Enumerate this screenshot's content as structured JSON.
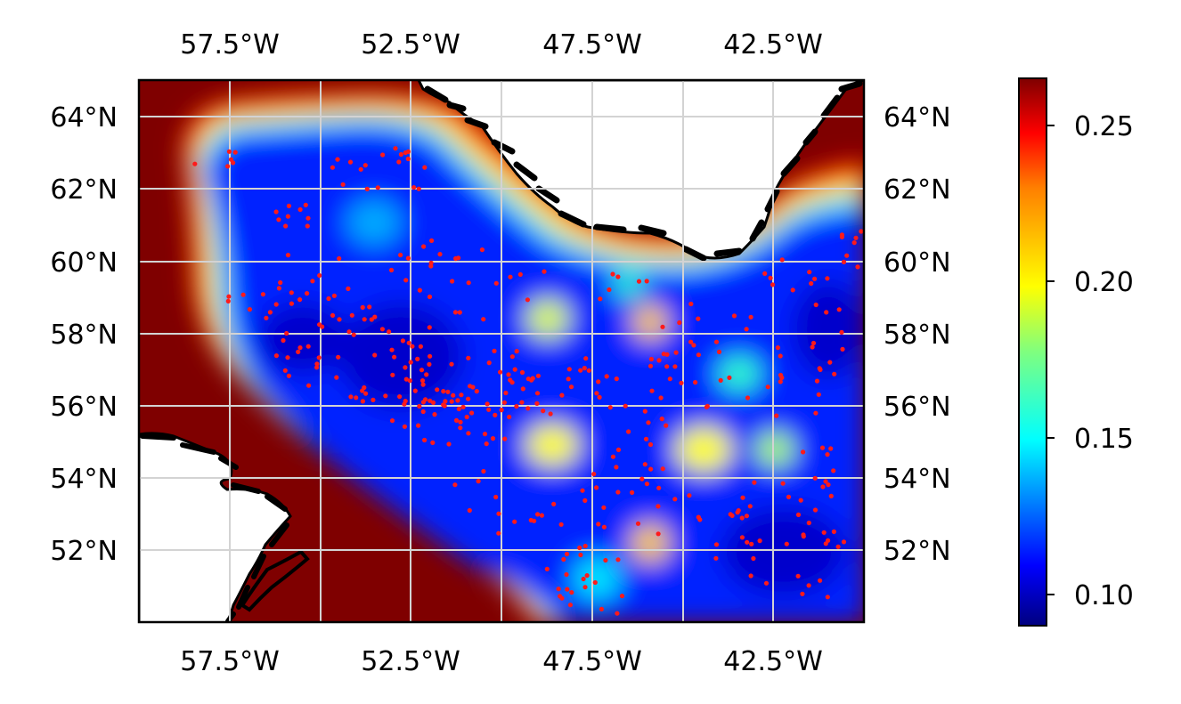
{
  "map": {
    "lon_range": [
      -60,
      -40
    ],
    "lat_range": [
      50,
      65
    ],
    "lon_tick_labels": [
      "57.5°W",
      "52.5°W",
      "47.5°W",
      "42.5°W"
    ],
    "lat_tick_labels": [
      "52°N",
      "54°N",
      "56°N",
      "58°N",
      "60°N",
      "62°N",
      "64°N"
    ],
    "gridlines": true,
    "colors": {
      "land": "#ffffff",
      "coastline": "#000000",
      "observation_points": "#ff1a1a",
      "gridline": "#d3d3d3",
      "colormap": "jet"
    }
  },
  "colorbar": {
    "colormap": "jet",
    "range": [
      0.09,
      0.265
    ],
    "tick_labels": [
      "0.10",
      "0.15",
      "0.20",
      "0.25"
    ]
  }
}
